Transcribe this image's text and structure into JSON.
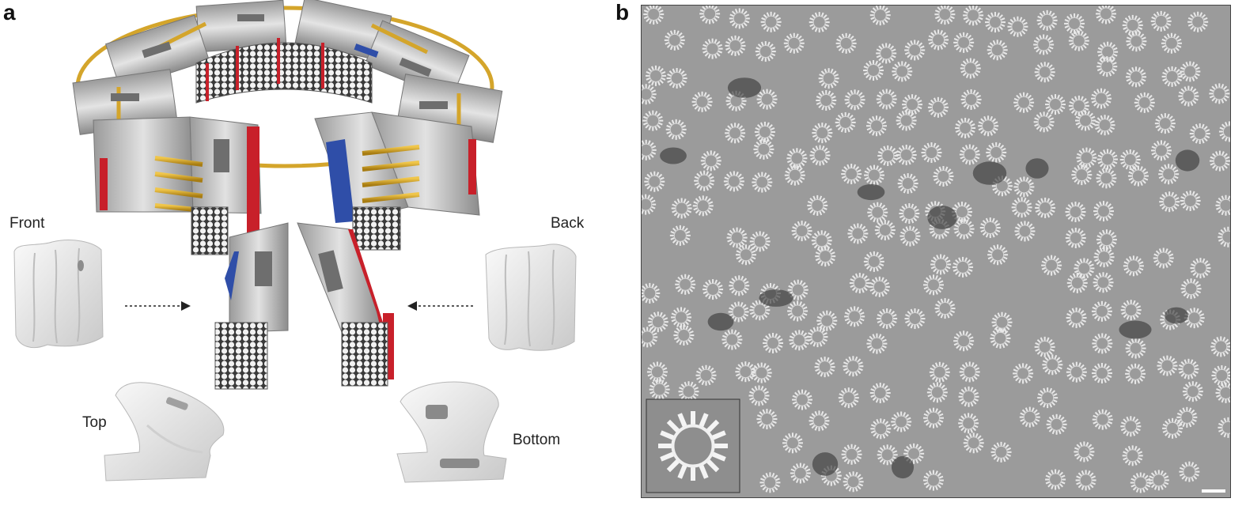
{
  "panels": {
    "a": {
      "letter": "a",
      "labels": {
        "front": "Front",
        "back": "Back",
        "top": "Top",
        "bottom": "Bottom"
      }
    },
    "b": {
      "letter": "b"
    }
  },
  "colors": {
    "helix": "#c8c8c8",
    "helix_dark": "#7a7a7a",
    "staple_highlight": "#6e6e6e",
    "connector": "#d4a52b",
    "marker_red": "#c8202a",
    "marker_blue": "#2f4ea8",
    "density_map": "#e9e9e9",
    "micrograph_bg": "#9b9b9b",
    "ring_particle": "#e8e8e8"
  },
  "icons": {
    "front_arrow": "dotted-arrow-right-icon",
    "back_arrow": "dotted-arrow-left-icon",
    "scale_bar": "scale-bar-icon"
  }
}
